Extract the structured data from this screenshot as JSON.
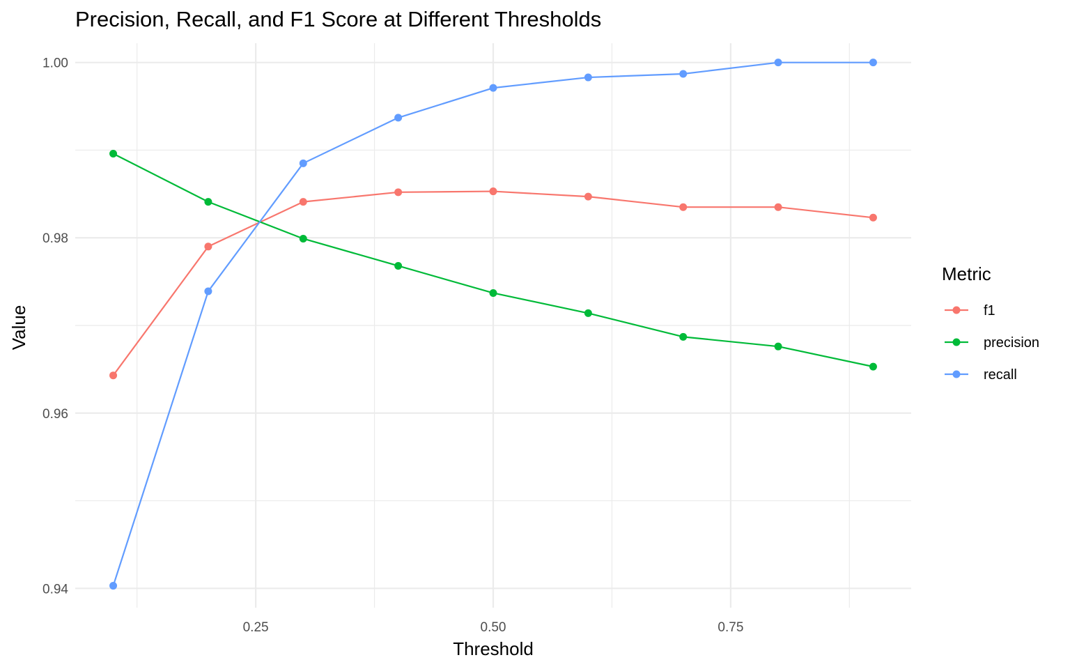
{
  "chart_data": {
    "type": "line",
    "title": "Precision, Recall, and F1 Score at Different Thresholds",
    "xlabel": "Threshold",
    "ylabel": "Value",
    "x": [
      0.1,
      0.2,
      0.3,
      0.4,
      0.5,
      0.6,
      0.7,
      0.8,
      0.9
    ],
    "xlim": [
      0.06,
      0.94
    ],
    "ylim": [
      0.9378,
      1.0022
    ],
    "x_ticks": [
      0.25,
      0.5,
      0.75
    ],
    "x_tick_labels": [
      "0.25",
      "0.50",
      "0.75"
    ],
    "y_ticks": [
      0.94,
      0.96,
      0.98,
      1.0
    ],
    "y_tick_labels": [
      "0.94",
      "0.96",
      "0.98",
      "1.00"
    ],
    "grid": true,
    "legend": {
      "title": "Metric",
      "position": "right"
    },
    "series": [
      {
        "name": "f1",
        "color": "#F8766D",
        "values": [
          0.9643,
          0.979,
          0.9841,
          0.9852,
          0.9853,
          0.9847,
          0.9835,
          0.9835,
          0.9823
        ]
      },
      {
        "name": "precision",
        "color": "#00BA38",
        "values": [
          0.9896,
          0.9841,
          0.9799,
          0.9768,
          0.9737,
          0.9714,
          0.9687,
          0.9676,
          0.9653
        ]
      },
      {
        "name": "recall",
        "color": "#619CFF",
        "values": [
          0.9403,
          0.9739,
          0.9885,
          0.9937,
          0.9971,
          0.9983,
          0.9987,
          1.0,
          1.0
        ]
      }
    ]
  }
}
